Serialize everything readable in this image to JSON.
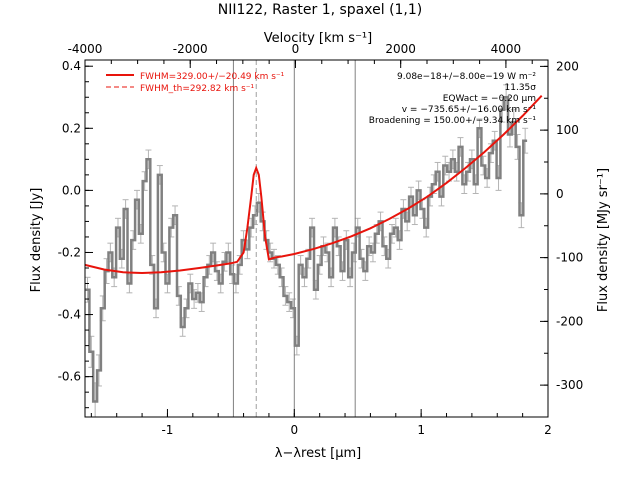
{
  "chart_data": {
    "type": "line",
    "title": "NII122, Raster 1, spaxel (1,1)",
    "xlabel": "λ−λrest [μm]",
    "ylabel": "Flux density [Jy]",
    "top_axis_label": "Velocity [km s⁻¹]",
    "right_axis_label": "Flux density [MJy sr⁻¹]",
    "xlim": [
      -1.65,
      2.0
    ],
    "ylim": [
      -0.73,
      0.42
    ],
    "top_axis_range": [
      -4000,
      4800
    ],
    "right_axis_range": [
      -350,
      210
    ],
    "x_ticks": [
      -1,
      0,
      1,
      2
    ],
    "y_ticks": [
      -0.6,
      -0.4,
      -0.2,
      0.0,
      0.2,
      0.4
    ],
    "top_ticks": [
      -4000,
      -2000,
      0,
      2000,
      4000
    ],
    "right_ticks": [
      -300,
      -200,
      -100,
      0,
      100,
      200
    ],
    "legend": {
      "placement": "top-left",
      "entries": [
        {
          "label": "FWHM=329.00+/−20.49 km s⁻¹",
          "style": "solid",
          "color": "#e8140c"
        },
        {
          "label": "FWHM_th=292.82 km s⁻¹",
          "style": "dashed",
          "color": "#e8140c"
        }
      ]
    },
    "annotations": [
      "9.08e−18+/−8.00e−19 W m⁻²",
      "11.35σ",
      "EQWact = −0.20 μm",
      "v = −735.65+/−16.00 km s⁻¹",
      "Broadening = 150.00+/−9.34 km s⁻¹"
    ],
    "vertical_lines": [
      {
        "x": -0.48,
        "style": "solid",
        "color": "#808080"
      },
      {
        "x": 0.0,
        "style": "solid",
        "color": "#808080"
      },
      {
        "x": 0.48,
        "style": "solid",
        "color": "#808080"
      },
      {
        "x": -0.3,
        "style": "dashed",
        "color": "#a0a0a0"
      }
    ],
    "series": [
      {
        "style": "step-with-errorbars",
        "color": "#808080",
        "x": [
          -1.63,
          -1.6,
          -1.57,
          -1.54,
          -1.51,
          -1.48,
          -1.45,
          -1.42,
          -1.39,
          -1.36,
          -1.33,
          -1.3,
          -1.27,
          -1.24,
          -1.21,
          -1.18,
          -1.15,
          -1.12,
          -1.09,
          -1.06,
          -1.03,
          -1.0,
          -0.97,
          -0.94,
          -0.91,
          -0.88,
          -0.85,
          -0.82,
          -0.79,
          -0.76,
          -0.73,
          -0.7,
          -0.67,
          -0.64,
          -0.61,
          -0.58,
          -0.55,
          -0.52,
          -0.49,
          -0.46,
          -0.43,
          -0.4,
          -0.37,
          -0.34,
          -0.31,
          -0.28,
          -0.25,
          -0.22,
          -0.19,
          -0.16,
          -0.13,
          -0.1,
          -0.07,
          -0.04,
          -0.01,
          0.02,
          0.05,
          0.08,
          0.11,
          0.14,
          0.17,
          0.2,
          0.23,
          0.26,
          0.29,
          0.32,
          0.35,
          0.38,
          0.41,
          0.44,
          0.47,
          0.5,
          0.53,
          0.56,
          0.59,
          0.62,
          0.65,
          0.68,
          0.71,
          0.74,
          0.77,
          0.8,
          0.83,
          0.86,
          0.89,
          0.92,
          0.95,
          0.98,
          1.01,
          1.04,
          1.07,
          1.1,
          1.13,
          1.16,
          1.19,
          1.22,
          1.25,
          1.28,
          1.31,
          1.34,
          1.37,
          1.4,
          1.43,
          1.46,
          1.49,
          1.52,
          1.55,
          1.58,
          1.61,
          1.64,
          1.67,
          1.7,
          1.73,
          1.76,
          1.79,
          1.82
        ],
        "values": [
          -0.32,
          -0.52,
          -0.68,
          -0.58,
          -0.38,
          -0.26,
          -0.2,
          -0.28,
          -0.12,
          -0.22,
          -0.06,
          -0.3,
          -0.16,
          -0.03,
          -0.14,
          0.03,
          0.1,
          -0.24,
          -0.38,
          0.05,
          -0.2,
          -0.3,
          -0.12,
          -0.08,
          -0.34,
          -0.44,
          -0.38,
          -0.3,
          -0.35,
          -0.33,
          -0.36,
          -0.28,
          -0.24,
          -0.2,
          -0.26,
          -0.3,
          -0.23,
          -0.2,
          -0.27,
          -0.3,
          -0.24,
          -0.16,
          -0.19,
          -0.12,
          -0.08,
          -0.04,
          -0.1,
          -0.16,
          -0.2,
          -0.22,
          -0.24,
          -0.28,
          -0.34,
          -0.36,
          -0.38,
          -0.5,
          -0.24,
          -0.28,
          -0.22,
          -0.12,
          -0.32,
          -0.24,
          -0.18,
          -0.2,
          -0.28,
          -0.12,
          -0.18,
          -0.26,
          -0.16,
          -0.28,
          -0.2,
          -0.12,
          -0.22,
          -0.26,
          -0.18,
          -0.2,
          -0.14,
          -0.1,
          -0.18,
          -0.22,
          -0.14,
          -0.12,
          -0.16,
          -0.06,
          -0.1,
          -0.02,
          -0.08,
          0.0,
          -0.06,
          -0.12,
          -0.02,
          0.02,
          0.06,
          -0.02,
          0.08,
          0.06,
          0.1,
          0.06,
          0.14,
          0.02,
          0.06,
          0.1,
          0.02,
          0.2,
          0.08,
          0.04,
          0.12,
          0.16,
          0.04,
          0.26,
          0.3,
          0.18,
          0.22,
          0.14,
          -0.08,
          0.16
        ],
        "errors": [
          0.04,
          0.05,
          0.06,
          0.05,
          0.04,
          0.04,
          0.03,
          0.03,
          0.03,
          0.03,
          0.03,
          0.03,
          0.03,
          0.03,
          0.03,
          0.03,
          0.03,
          0.03,
          0.03,
          0.03,
          0.03,
          0.03,
          0.03,
          0.03,
          0.03,
          0.03,
          0.03,
          0.03,
          0.03,
          0.03,
          0.03,
          0.03,
          0.03,
          0.03,
          0.03,
          0.03,
          0.03,
          0.03,
          0.03,
          0.03,
          0.03,
          0.03,
          0.03,
          0.03,
          0.03,
          0.03,
          0.03,
          0.03,
          0.03,
          0.03,
          0.03,
          0.03,
          0.03,
          0.03,
          0.03,
          0.03,
          0.03,
          0.03,
          0.03,
          0.03,
          0.03,
          0.03,
          0.03,
          0.03,
          0.03,
          0.03,
          0.03,
          0.03,
          0.03,
          0.03,
          0.03,
          0.03,
          0.03,
          0.03,
          0.03,
          0.03,
          0.03,
          0.03,
          0.03,
          0.03,
          0.03,
          0.03,
          0.03,
          0.03,
          0.03,
          0.03,
          0.03,
          0.03,
          0.03,
          0.03,
          0.03,
          0.03,
          0.03,
          0.03,
          0.03,
          0.03,
          0.03,
          0.03,
          0.03,
          0.03,
          0.03,
          0.03,
          0.03,
          0.03,
          0.03,
          0.03,
          0.03,
          0.03,
          0.04,
          0.04,
          0.04,
          0.04,
          0.04,
          0.04,
          0.04,
          0.04
        ]
      },
      {
        "style": "smooth-line",
        "color": "#e8140c",
        "x": [
          -1.65,
          -1.5,
          -1.35,
          -1.2,
          -1.05,
          -0.9,
          -0.75,
          -0.6,
          -0.5,
          -0.45,
          -0.4,
          -0.37,
          -0.34,
          -0.32,
          -0.3,
          -0.28,
          -0.26,
          -0.23,
          -0.2,
          -0.15,
          -0.1,
          0.0,
          0.15,
          0.3,
          0.45,
          0.6,
          0.75,
          0.9,
          1.05,
          1.2,
          1.35,
          1.5,
          1.65,
          1.8,
          1.95
        ],
        "values": [
          -0.24,
          -0.255,
          -0.264,
          -0.266,
          -0.264,
          -0.258,
          -0.25,
          -0.241,
          -0.235,
          -0.23,
          -0.2,
          -0.12,
          -0.02,
          0.05,
          0.072,
          0.05,
          -0.02,
          -0.15,
          -0.222,
          -0.216,
          -0.213,
          -0.205,
          -0.189,
          -0.17,
          -0.148,
          -0.122,
          -0.092,
          -0.058,
          -0.02,
          0.024,
          0.072,
          0.124,
          0.18,
          0.24,
          0.305
        ]
      }
    ]
  }
}
